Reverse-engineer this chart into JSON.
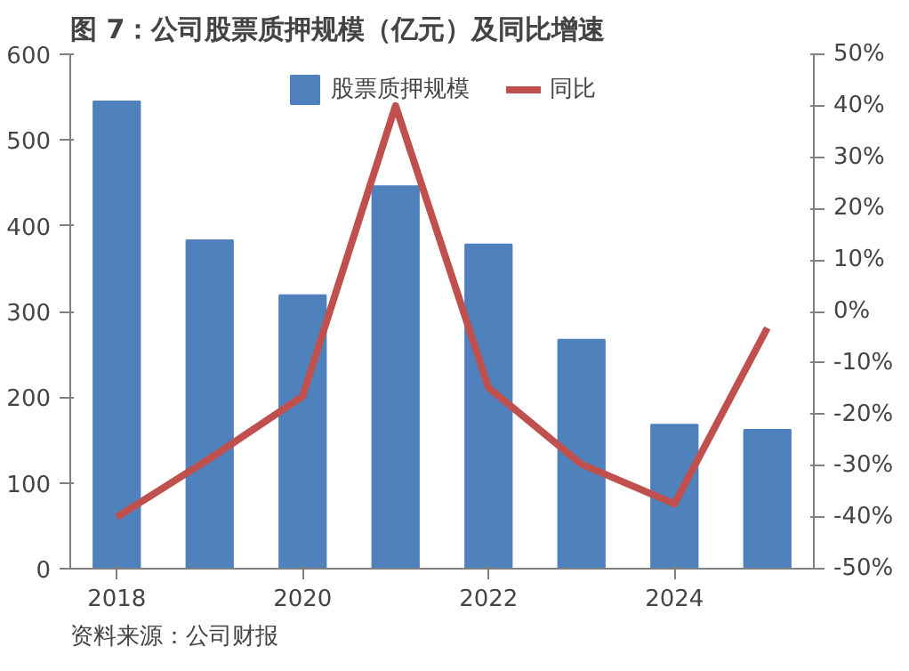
{
  "chart_data": {
    "type": "bar",
    "title": "图 7：公司股票质押规模（亿元）及同比增速",
    "x": [
      2018,
      2019,
      2020,
      2021,
      2022,
      2023,
      2024,
      2025
    ],
    "xlim": [
      2017.5,
      2025.5
    ],
    "xticks": [
      2018,
      2020,
      2022,
      2024
    ],
    "ylim": [
      0,
      600
    ],
    "yticks": [
      0,
      100,
      200,
      300,
      400,
      500,
      600
    ],
    "y2lim": [
      -50,
      50
    ],
    "y2ticks": [
      {
        "value": -50,
        "label": "-50%"
      },
      {
        "value": -40,
        "label": "-40%"
      },
      {
        "value": -30,
        "label": "-30%"
      },
      {
        "value": -20,
        "label": "-20%"
      },
      {
        "value": -10,
        "label": "-10%"
      },
      {
        "value": 0,
        "label": "0%"
      },
      {
        "value": 10,
        "label": "10%"
      },
      {
        "value": 20,
        "label": "20%"
      },
      {
        "value": 30,
        "label": "30%"
      },
      {
        "value": 40,
        "label": "40%"
      },
      {
        "value": 50,
        "label": "50%"
      }
    ],
    "series": [
      {
        "name": "股票质押规模",
        "color": "#4f81bd",
        "values": [
          545,
          383,
          319,
          446,
          378,
          267,
          168,
          162
        ]
      },
      {
        "name": "同比",
        "type": "line",
        "axis": "y2",
        "color": "#c0504d",
        "values": [
          -40,
          -28.6,
          -16.5,
          40,
          -14.8,
          -29.7,
          -37.4,
          -3.2
        ]
      }
    ],
    "legend": "top",
    "annotations": [
      "资料来源：公司财报"
    ]
  }
}
